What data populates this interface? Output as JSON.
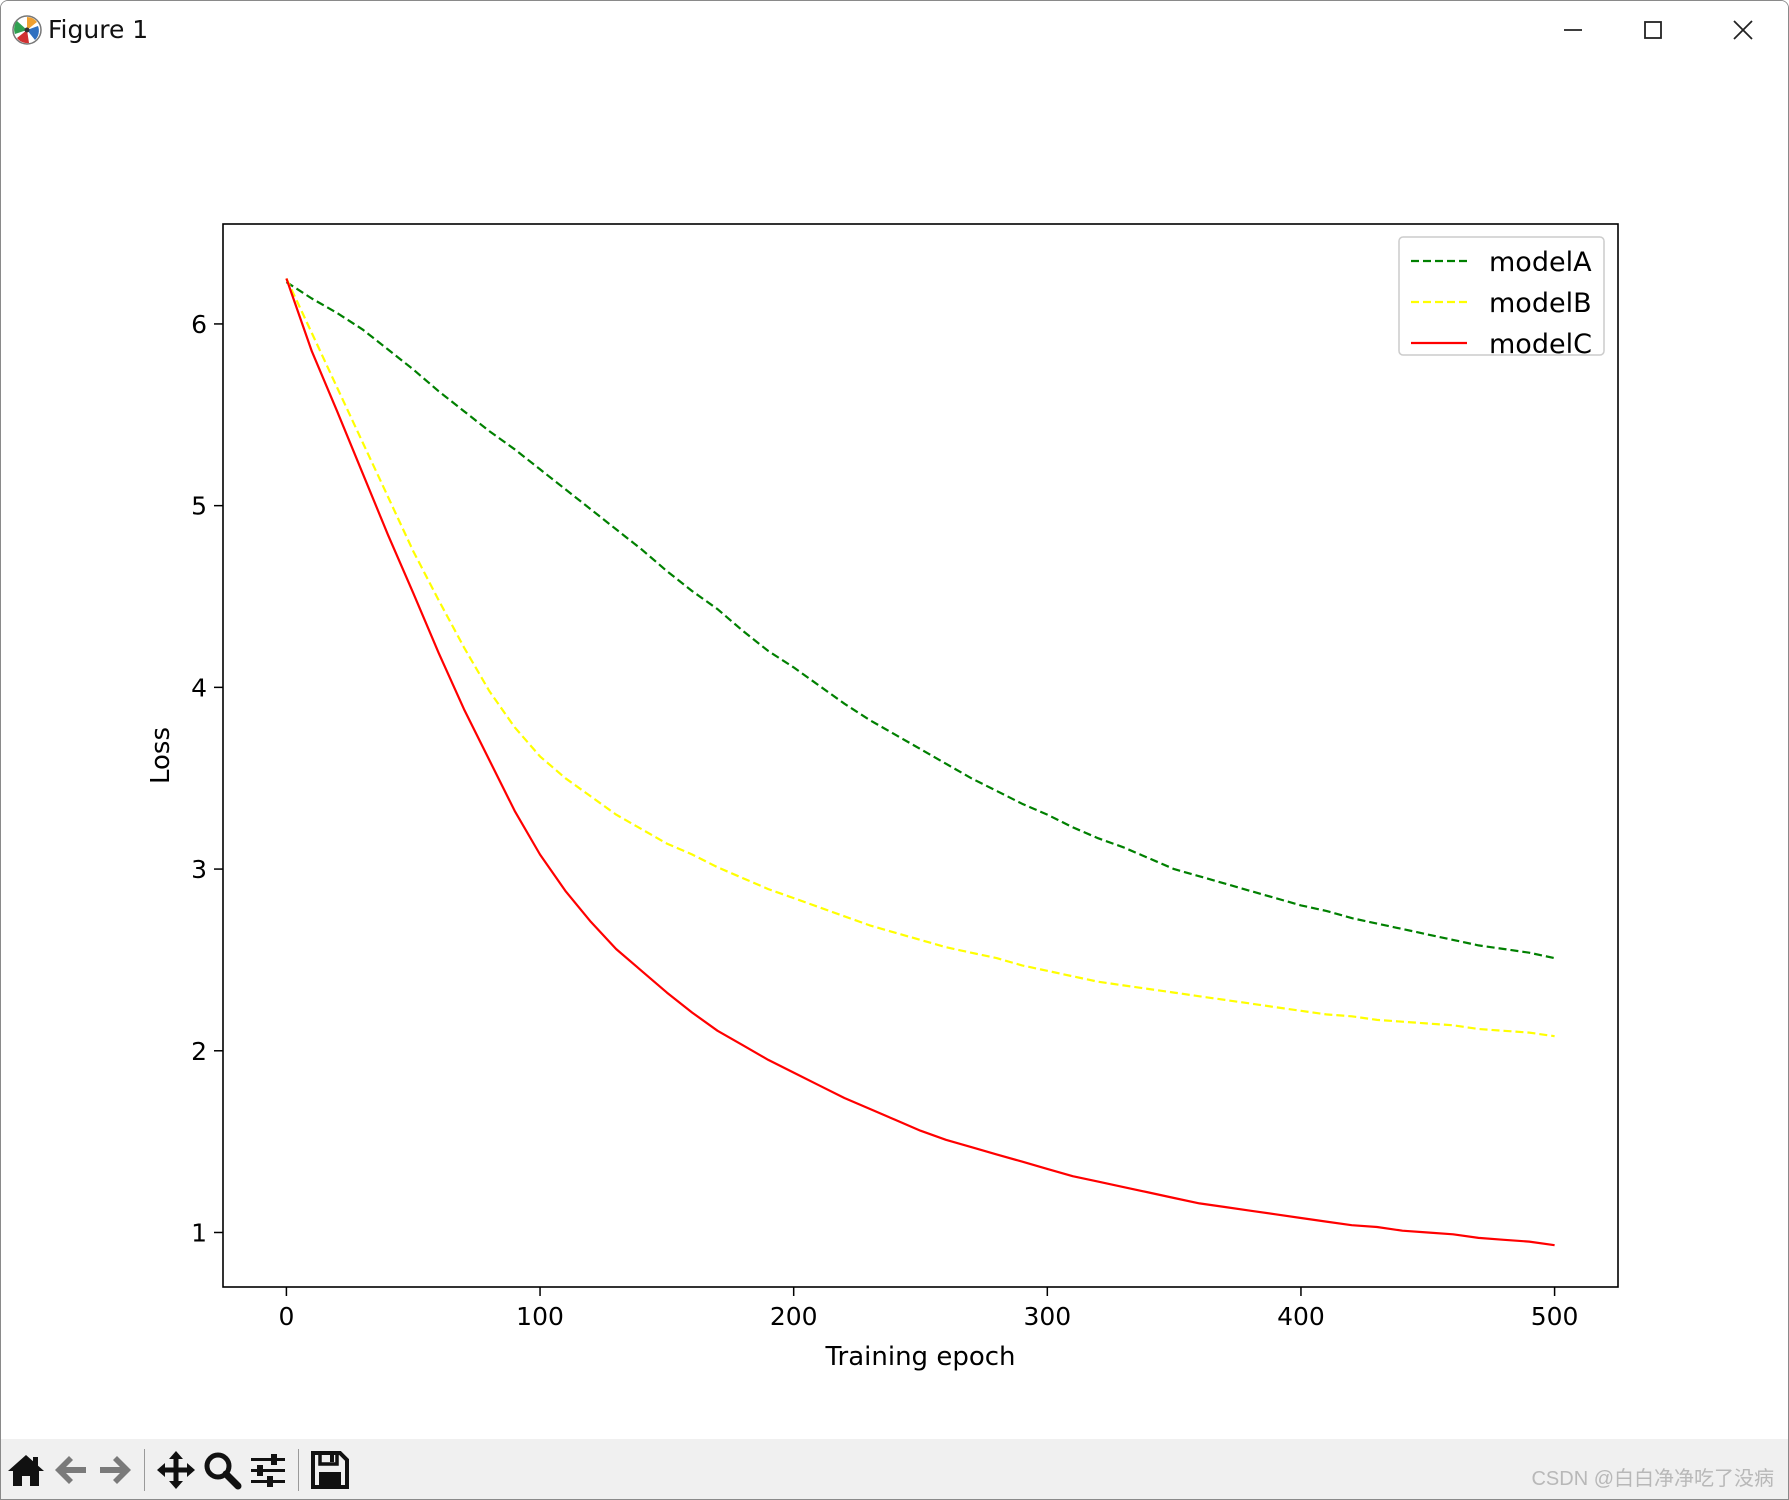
{
  "window": {
    "title": "Figure 1",
    "icons": {
      "app": "matplotlib-icon",
      "minimize": "minimize-icon",
      "maximize": "maximize-icon",
      "close": "close-icon"
    }
  },
  "toolbar": {
    "buttons": [
      {
        "name": "home-button",
        "icon": "home-icon"
      },
      {
        "name": "back-button",
        "icon": "arrow-left-icon"
      },
      {
        "name": "forward-button",
        "icon": "arrow-right-icon"
      },
      {
        "name": "pan-button",
        "icon": "move-icon"
      },
      {
        "name": "zoom-button",
        "icon": "magnifier-icon"
      },
      {
        "name": "configure-subplots-button",
        "icon": "sliders-icon"
      },
      {
        "name": "save-button",
        "icon": "floppy-disk-icon"
      }
    ]
  },
  "watermark": "CSDN @白白净净吃了没病",
  "chart_data": {
    "type": "line",
    "title": "",
    "xlabel": "Training epoch",
    "ylabel": "Loss",
    "xlim": [
      -25,
      525
    ],
    "ylim": [
      0.7,
      6.55
    ],
    "xticks": [
      0,
      100,
      200,
      300,
      400,
      500
    ],
    "yticks": [
      1,
      2,
      3,
      4,
      5,
      6
    ],
    "grid": false,
    "legend": "top-right",
    "x": [
      0,
      10,
      20,
      30,
      40,
      50,
      60,
      70,
      80,
      90,
      100,
      110,
      120,
      130,
      140,
      150,
      160,
      170,
      180,
      190,
      200,
      210,
      220,
      230,
      240,
      250,
      260,
      270,
      280,
      290,
      300,
      310,
      320,
      330,
      340,
      350,
      360,
      370,
      380,
      390,
      400,
      410,
      420,
      430,
      440,
      450,
      460,
      470,
      480,
      490,
      500
    ],
    "series": [
      {
        "name": "modelA",
        "color": "#008000",
        "style": "dashed",
        "values": [
          6.23,
          6.14,
          6.06,
          5.97,
          5.86,
          5.75,
          5.63,
          5.52,
          5.41,
          5.31,
          5.2,
          5.09,
          4.98,
          4.87,
          4.76,
          4.64,
          4.53,
          4.43,
          4.31,
          4.2,
          4.11,
          4.01,
          3.91,
          3.82,
          3.74,
          3.66,
          3.58,
          3.5,
          3.43,
          3.36,
          3.3,
          3.23,
          3.17,
          3.12,
          3.06,
          3.0,
          2.96,
          2.92,
          2.88,
          2.84,
          2.8,
          2.77,
          2.73,
          2.7,
          2.67,
          2.64,
          2.61,
          2.58,
          2.56,
          2.54,
          2.51
        ]
      },
      {
        "name": "modelB",
        "color": "#ffff00",
        "style": "dashed",
        "values": [
          6.25,
          5.95,
          5.65,
          5.35,
          5.05,
          4.75,
          4.48,
          4.22,
          3.98,
          3.78,
          3.62,
          3.5,
          3.4,
          3.3,
          3.22,
          3.14,
          3.08,
          3.01,
          2.95,
          2.89,
          2.84,
          2.79,
          2.74,
          2.69,
          2.65,
          2.61,
          2.57,
          2.54,
          2.51,
          2.47,
          2.44,
          2.41,
          2.38,
          2.36,
          2.34,
          2.32,
          2.3,
          2.28,
          2.26,
          2.24,
          2.22,
          2.2,
          2.19,
          2.17,
          2.16,
          2.15,
          2.14,
          2.12,
          2.11,
          2.1,
          2.08
        ]
      },
      {
        "name": "modelC",
        "color": "#ff0000",
        "style": "solid",
        "values": [
          6.25,
          5.85,
          5.52,
          5.18,
          4.84,
          4.52,
          4.19,
          3.88,
          3.6,
          3.32,
          3.08,
          2.88,
          2.71,
          2.56,
          2.44,
          2.32,
          2.21,
          2.11,
          2.03,
          1.95,
          1.88,
          1.81,
          1.74,
          1.68,
          1.62,
          1.56,
          1.51,
          1.47,
          1.43,
          1.39,
          1.35,
          1.31,
          1.28,
          1.25,
          1.22,
          1.19,
          1.16,
          1.14,
          1.12,
          1.1,
          1.08,
          1.06,
          1.04,
          1.03,
          1.01,
          1.0,
          0.99,
          0.97,
          0.96,
          0.95,
          0.93
        ]
      }
    ]
  }
}
